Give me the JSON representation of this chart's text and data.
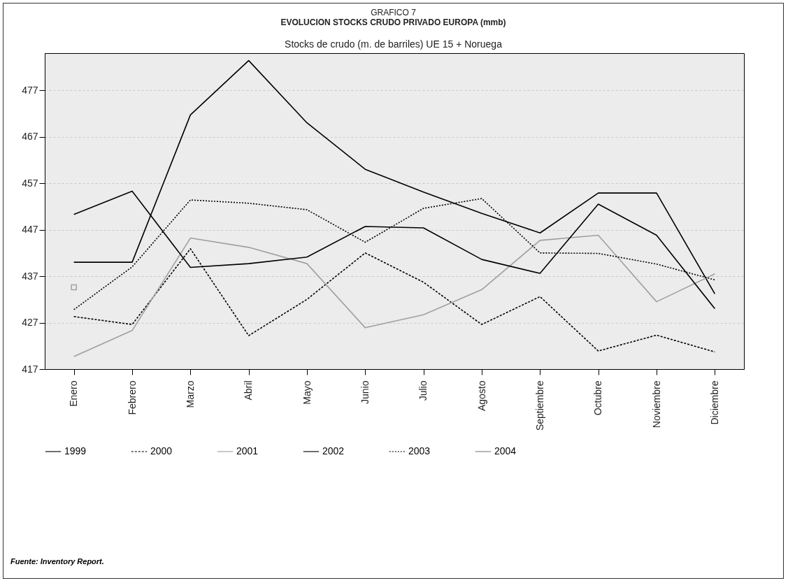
{
  "chart_data": {
    "type": "line",
    "title": "EVOLUCION STOCKS CRUDO PRIVADO EUROPA (mmb)",
    "subtitle": "Stocks de crudo (m. de barriles) UE 15 + Noruega",
    "annotations": [
      "GRAFICO 7",
      "Fuente: Inventory Report."
    ],
    "categories": [
      "Enero",
      "Febrero",
      "Marzo",
      "Abril",
      "Mayo",
      "Junio",
      "Julio",
      "Agosto",
      "Septiembre",
      "Octubre",
      "Noviembre",
      "Diciembre"
    ],
    "series": [
      {
        "name": "1999",
        "color": "#000000",
        "line_style": "solid",
        "values": [
          440.0,
          440.0,
          471.7,
          483.4,
          470.0,
          460.0,
          455.1,
          450.5,
          446.3,
          454.9,
          454.9,
          433.2
        ]
      },
      {
        "name": "2000",
        "color": "#000000",
        "line_style": "dashed",
        "values": [
          428.3,
          426.6,
          442.9,
          424.2,
          432.0,
          442.0,
          435.7,
          426.6,
          432.6,
          420.9,
          424.3,
          420.7
        ]
      },
      {
        "name": "2001",
        "color": "#a0a0a0",
        "line_style": "solid",
        "values": [
          419.7,
          425.3,
          445.2,
          443.2,
          439.7,
          425.9,
          428.7,
          434.1,
          444.7,
          445.8,
          431.5,
          437.5
        ]
      },
      {
        "name": "2002",
        "color": "#000000",
        "line_style": "solid",
        "values": [
          450.3,
          455.3,
          438.9,
          439.7,
          441.1,
          447.7,
          447.4,
          440.6,
          437.6,
          452.5,
          445.8,
          430.0
        ]
      },
      {
        "name": "2003",
        "color": "#000000",
        "line_style": "dotted",
        "values": [
          429.8,
          439.0,
          453.4,
          452.7,
          451.3,
          444.3,
          451.6,
          453.7,
          442.0,
          441.9,
          439.6,
          436.2
        ]
      },
      {
        "name": "2004",
        "color": "#808080",
        "line_style": "solid",
        "marker": "square",
        "values": [
          434.6,
          null,
          null,
          null,
          null,
          null,
          null,
          null,
          null,
          null,
          null,
          null
        ]
      }
    ],
    "ylim": [
      417,
      485
    ],
    "yticks": [
      417,
      427,
      437,
      447,
      457,
      467,
      477
    ],
    "grid": "y",
    "legend": "bottom"
  }
}
